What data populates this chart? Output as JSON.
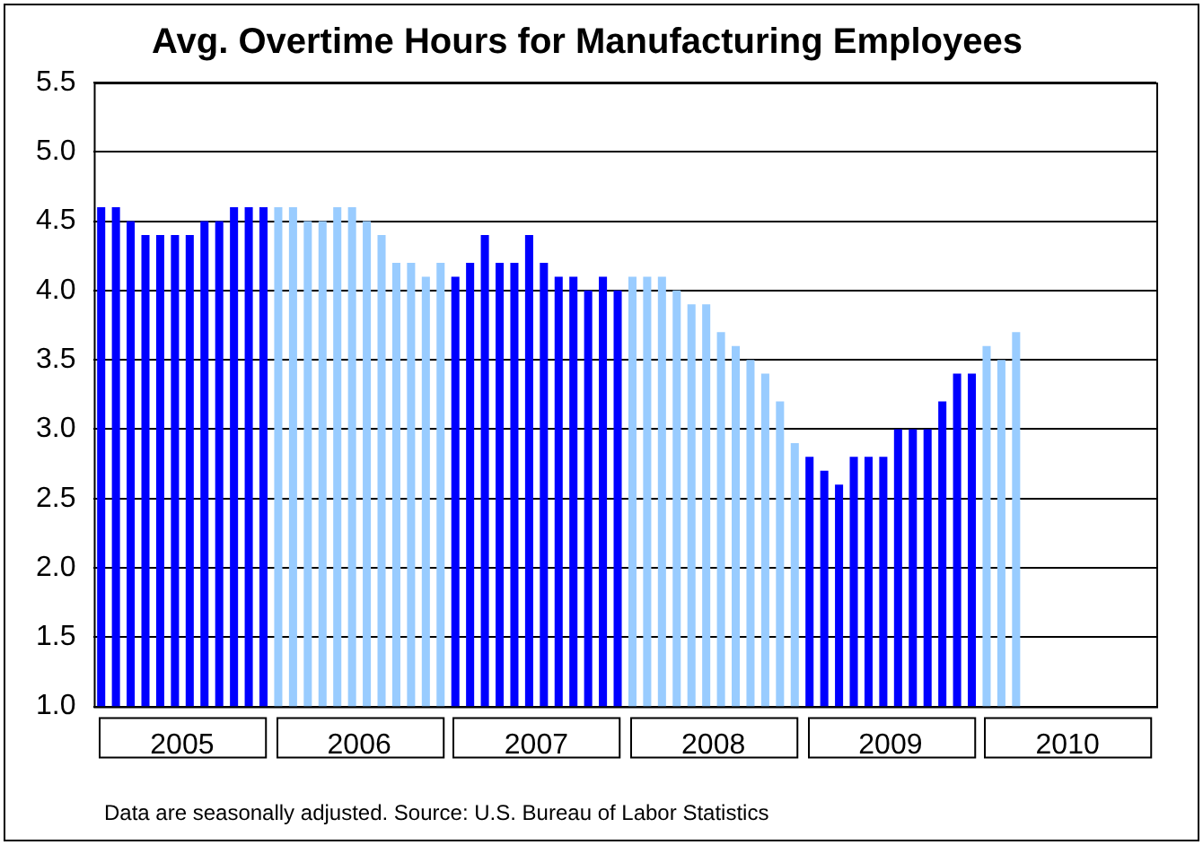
{
  "chart_data": {
    "type": "bar",
    "title": "Avg. Overtime Hours for Manufacturing Employees",
    "categories": [
      null,
      null,
      null,
      null,
      null,
      "2005",
      null,
      null,
      null,
      null,
      null,
      null,
      null,
      null,
      null,
      null,
      null,
      "2006",
      null,
      null,
      null,
      null,
      null,
      null,
      null,
      null,
      null,
      null,
      null,
      "2007",
      null,
      null,
      null,
      null,
      null,
      null,
      null,
      null,
      null,
      null,
      null,
      "2008",
      null,
      null,
      null,
      null,
      null,
      null,
      null,
      null,
      null,
      null,
      null,
      "2009",
      null,
      null,
      null,
      null,
      null,
      null,
      null,
      null,
      null,
      null,
      null,
      "2010",
      null,
      null,
      null,
      null,
      null,
      null
    ],
    "values": [
      4.6,
      4.6,
      4.5,
      4.4,
      4.4,
      4.4,
      4.4,
      4.5,
      4.5,
      4.6,
      4.6,
      4.6,
      4.6,
      4.6,
      4.5,
      4.5,
      4.6,
      4.6,
      4.5,
      4.4,
      4.2,
      4.2,
      4.1,
      4.2,
      4.1,
      4.2,
      4.4,
      4.2,
      4.2,
      4.4,
      4.2,
      4.1,
      4.1,
      4.0,
      4.1,
      4.0,
      4.1,
      4.1,
      4.1,
      4.0,
      3.9,
      3.9,
      3.7,
      3.6,
      3.5,
      3.4,
      3.2,
      2.9,
      2.8,
      2.7,
      2.6,
      2.8,
      2.8,
      2.8,
      3.0,
      3.0,
      3.0,
      3.2,
      3.4,
      3.4,
      3.6,
      3.5,
      3.7,
      null,
      null,
      null,
      null,
      null,
      null,
      null,
      null,
      null
    ],
    "colors": [
      "#0000ff",
      "#0000ff",
      "#0000ff",
      "#0000ff",
      "#0000ff",
      "#0000ff",
      "#0000ff",
      "#0000ff",
      "#0000ff",
      "#0000ff",
      "#0000ff",
      "#0000ff",
      "#99ccff",
      "#99ccff",
      "#99ccff",
      "#99ccff",
      "#99ccff",
      "#99ccff",
      "#99ccff",
      "#99ccff",
      "#99ccff",
      "#99ccff",
      "#99ccff",
      "#99ccff",
      "#0000ff",
      "#0000ff",
      "#0000ff",
      "#0000ff",
      "#0000ff",
      "#0000ff",
      "#0000ff",
      "#0000ff",
      "#0000ff",
      "#0000ff",
      "#0000ff",
      "#0000ff",
      "#99ccff",
      "#99ccff",
      "#99ccff",
      "#99ccff",
      "#99ccff",
      "#99ccff",
      "#99ccff",
      "#99ccff",
      "#99ccff",
      "#99ccff",
      "#99ccff",
      "#99ccff",
      "#0000ff",
      "#0000ff",
      "#0000ff",
      "#0000ff",
      "#0000ff",
      "#0000ff",
      "#0000ff",
      "#0000ff",
      "#0000ff",
      "#0000ff",
      "#0000ff",
      "#0000ff",
      "#99ccff",
      "#99ccff",
      "#99ccff",
      "#99ccff",
      "#99ccff",
      "#99ccff",
      "#99ccff",
      "#99ccff",
      "#99ccff",
      "#99ccff",
      "#99ccff",
      "#99ccff"
    ],
    "ylim": [
      1.0,
      5.5
    ],
    "yticks": [
      {
        "value": 1.0,
        "label": "1.0"
      },
      {
        "value": 1.5,
        "label": "1.5"
      },
      {
        "value": 2.0,
        "label": "2.0"
      },
      {
        "value": 2.5,
        "label": "2.5"
      },
      {
        "value": 3.0,
        "label": "3.0"
      },
      {
        "value": 3.5,
        "label": "3.5"
      },
      {
        "value": 4.0,
        "label": "4.0"
      },
      {
        "value": 4.5,
        "label": "4.5"
      },
      {
        "value": 5.0,
        "label": "5.0"
      },
      {
        "value": 5.5,
        "label": "5.5"
      }
    ],
    "grid": "y",
    "annotations": [
      "Data are seasonally adjusted.  Source: U.S. Bureau of Labor Statistics"
    ]
  }
}
